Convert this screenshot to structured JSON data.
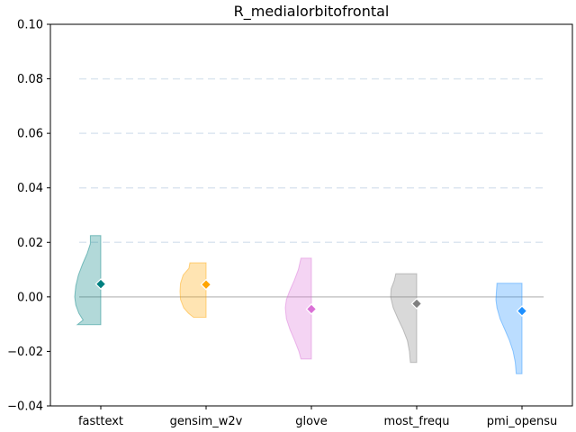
{
  "chart_data": {
    "type": "violin",
    "title": "R_medialorbitofrontal",
    "xlabel": "",
    "ylabel": "",
    "ylim": [
      -0.04,
      0.1
    ],
    "yticks": [
      -0.04,
      -0.02,
      0.0,
      0.02,
      0.04,
      0.06,
      0.08,
      0.1
    ],
    "ytick_labels": [
      "−0.04",
      "−0.02",
      "0.00",
      "0.02",
      "0.04",
      "0.06",
      "0.08",
      "0.10"
    ],
    "grid": "horizontal dashed",
    "reference_line": 0.0,
    "categories": [
      "fasttext",
      "gensim_w2v",
      "glove",
      "most_frequ",
      "pmi_opensu"
    ],
    "series": [
      {
        "category": "fasttext",
        "color": "#008080",
        "mean": 0.0047,
        "min": -0.0102,
        "max": 0.0225,
        "profile": [
          [
            -0.0102,
            0.9
          ],
          [
            -0.0085,
            0.68
          ],
          [
            -0.006,
            0.84
          ],
          [
            -0.003,
            0.96
          ],
          [
            0.0,
            1.0
          ],
          [
            0.004,
            0.96
          ],
          [
            0.008,
            0.86
          ],
          [
            0.012,
            0.7
          ],
          [
            0.016,
            0.52
          ],
          [
            0.0195,
            0.4
          ],
          [
            0.0225,
            0.4
          ]
        ]
      },
      {
        "category": "gensim_w2v",
        "color": "#FFA500",
        "mean": 0.0045,
        "min": -0.0075,
        "max": 0.0125,
        "profile": [
          [
            -0.0075,
            0.48
          ],
          [
            -0.006,
            0.68
          ],
          [
            -0.004,
            0.86
          ],
          [
            -0.001,
            0.98
          ],
          [
            0.002,
            1.0
          ],
          [
            0.005,
            0.98
          ],
          [
            0.008,
            0.88
          ],
          [
            0.0105,
            0.66
          ],
          [
            0.0125,
            0.62
          ]
        ]
      },
      {
        "category": "glove",
        "color": "#DA70D6",
        "mean": -0.0045,
        "min": -0.0228,
        "max": 0.0142,
        "profile": [
          [
            -0.0228,
            0.4
          ],
          [
            -0.02,
            0.48
          ],
          [
            -0.016,
            0.64
          ],
          [
            -0.012,
            0.82
          ],
          [
            -0.008,
            0.96
          ],
          [
            -0.004,
            1.0
          ],
          [
            -0.001,
            0.96
          ],
          [
            0.002,
            0.84
          ],
          [
            0.006,
            0.66
          ],
          [
            0.01,
            0.5
          ],
          [
            0.0142,
            0.4
          ]
        ]
      },
      {
        "category": "most_frequ",
        "color": "#808080",
        "mean": -0.0025,
        "min": -0.0241,
        "max": 0.0085,
        "profile": [
          [
            -0.0241,
            0.24
          ],
          [
            -0.02,
            0.28
          ],
          [
            -0.016,
            0.36
          ],
          [
            -0.012,
            0.52
          ],
          [
            -0.008,
            0.72
          ],
          [
            -0.004,
            0.9
          ],
          [
            0.0,
            1.0
          ],
          [
            0.003,
            0.98
          ],
          [
            0.006,
            0.86
          ],
          [
            0.0085,
            0.8
          ]
        ]
      },
      {
        "category": "pmi_opensu",
        "color": "#1E90FF",
        "mean": -0.0052,
        "min": -0.0282,
        "max": 0.005,
        "profile": [
          [
            -0.0282,
            0.22
          ],
          [
            -0.024,
            0.26
          ],
          [
            -0.02,
            0.34
          ],
          [
            -0.016,
            0.48
          ],
          [
            -0.012,
            0.66
          ],
          [
            -0.008,
            0.84
          ],
          [
            -0.004,
            0.96
          ],
          [
            -0.001,
            1.0
          ],
          [
            0.002,
            0.98
          ],
          [
            0.005,
            0.96
          ]
        ]
      }
    ]
  }
}
